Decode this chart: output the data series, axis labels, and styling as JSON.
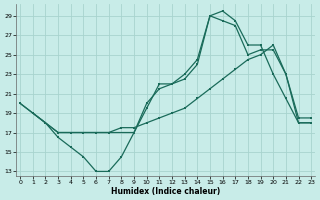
{
  "xlabel": "Humidex (Indice chaleur)",
  "xlim": [
    -0.3,
    23.3
  ],
  "ylim": [
    12.5,
    30.2
  ],
  "yticks": [
    13,
    15,
    17,
    19,
    21,
    23,
    25,
    27,
    29
  ],
  "xticks": [
    0,
    1,
    2,
    3,
    4,
    5,
    6,
    7,
    8,
    9,
    10,
    11,
    12,
    13,
    14,
    15,
    16,
    17,
    18,
    19,
    20,
    21,
    22,
    23
  ],
  "bg_color": "#c8ece8",
  "grid_color": "#a8d4ce",
  "line_color": "#1a6b5a",
  "line1_x": [
    0,
    1,
    2,
    3,
    4,
    5,
    6,
    7,
    8,
    9,
    10,
    11,
    12,
    13,
    14,
    15,
    16,
    17,
    18,
    19,
    20,
    21,
    22,
    23
  ],
  "line1_y": [
    20.0,
    19.0,
    18.0,
    16.5,
    15.5,
    14.5,
    13.0,
    13.0,
    14.5,
    17.0,
    20.0,
    21.5,
    22.0,
    22.5,
    24.0,
    29.0,
    29.5,
    28.5,
    26.0,
    26.0,
    23.0,
    20.5,
    18.0,
    18.0
  ],
  "line2_x": [
    1,
    2,
    3,
    4,
    5,
    6,
    7,
    8,
    9,
    10,
    11,
    12,
    13,
    14,
    15,
    16,
    17,
    18,
    19,
    20,
    21,
    22,
    23
  ],
  "line2_y": [
    19.0,
    18.0,
    17.0,
    17.0,
    17.0,
    17.0,
    17.0,
    17.5,
    17.5,
    18.0,
    18.5,
    19.0,
    19.5,
    20.5,
    21.5,
    22.5,
    23.5,
    24.5,
    25.0,
    26.0,
    23.0,
    18.5,
    18.5
  ],
  "line3_x": [
    0,
    1,
    3,
    5,
    7,
    9,
    10,
    11,
    12,
    13,
    14,
    15,
    16,
    17,
    18,
    19,
    20,
    21,
    22,
    23
  ],
  "line3_y": [
    20.0,
    19.0,
    17.0,
    17.0,
    17.0,
    17.0,
    19.5,
    22.0,
    22.0,
    23.0,
    24.5,
    29.0,
    28.5,
    28.0,
    25.0,
    25.5,
    25.5,
    23.0,
    18.0,
    18.0
  ]
}
